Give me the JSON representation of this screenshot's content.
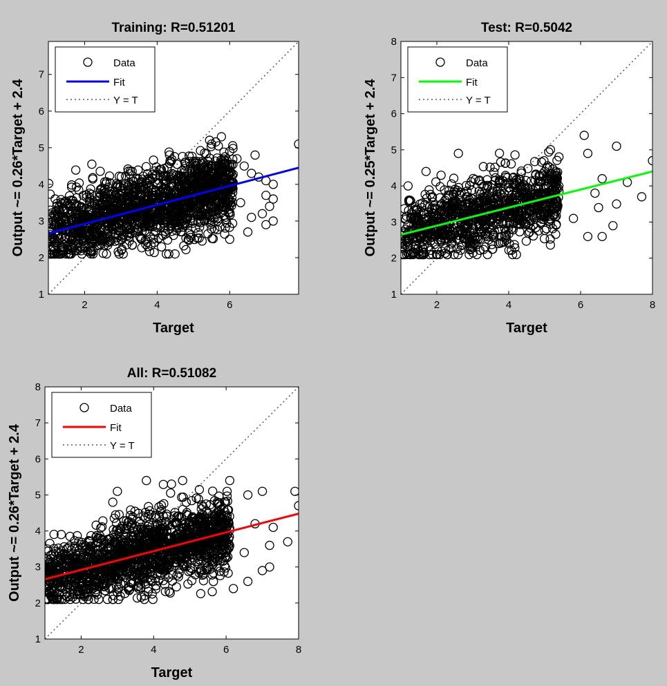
{
  "figure": {
    "background": "#c8c8c8",
    "plot_background": "#ffffff"
  },
  "chart_data": [
    {
      "id": "training",
      "type": "scatter",
      "title": "Training: R=0.51201",
      "xlabel": "Target",
      "ylabel": "Output ~= 0.26*Target + 2.4",
      "xlim": [
        1,
        7.9
      ],
      "ylim": [
        1,
        7.9
      ],
      "xticks": [
        "2",
        "4",
        "6"
      ],
      "yticks": [
        "1",
        "2",
        "3",
        "4",
        "5",
        "6",
        "7"
      ],
      "legend": {
        "position": "top-left",
        "entries": [
          "Data",
          "Fit",
          "Y = T"
        ]
      },
      "fit": {
        "slope": 0.26,
        "intercept": 2.4,
        "color": "#0000ff"
      },
      "identity_line": true,
      "grid": false,
      "data": {
        "distribution": "dense cluster, x 1–6, y 2–5.3",
        "outliers": [
          [
            5.5,
            5.1
          ],
          [
            6.0,
            4.9
          ],
          [
            6.2,
            4.7
          ],
          [
            6.4,
            4.5
          ],
          [
            6.6,
            4.3
          ],
          [
            6.8,
            4.2
          ],
          [
            7.0,
            4.1
          ],
          [
            7.0,
            3.7
          ],
          [
            7.1,
            3.4
          ],
          [
            7.2,
            4.0
          ],
          [
            7.2,
            3.6
          ],
          [
            7.2,
            3.0
          ],
          [
            7.0,
            2.9
          ],
          [
            6.6,
            3.1
          ],
          [
            6.5,
            2.7
          ],
          [
            6.3,
            3.5
          ],
          [
            6.0,
            2.5
          ],
          [
            6.7,
            4.8
          ],
          [
            7.9,
            5.1
          ],
          [
            6.9,
            3.2
          ]
        ]
      }
    },
    {
      "id": "test",
      "type": "scatter",
      "title": "Test: R=0.5042",
      "xlabel": "Target",
      "ylabel": "Output ~= 0.25*Target + 2.4",
      "xlim": [
        1,
        8
      ],
      "ylim": [
        1,
        8
      ],
      "xticks": [
        "2",
        "4",
        "6",
        "8"
      ],
      "yticks": [
        "1",
        "2",
        "3",
        "4",
        "5",
        "6",
        "7",
        "8"
      ],
      "legend": {
        "position": "top-left",
        "entries": [
          "Data",
          "Fit",
          "Y = T"
        ]
      },
      "fit": {
        "slope": 0.25,
        "intercept": 2.4,
        "color": "#00ff00"
      },
      "identity_line": true,
      "grid": false,
      "data": {
        "distribution": "dense cluster, x 1–5.5, y 2.2–5",
        "outliers": [
          [
            6.1,
            5.4
          ],
          [
            7.0,
            5.1
          ],
          [
            6.2,
            4.9
          ],
          [
            6.6,
            4.2
          ],
          [
            6.4,
            3.8
          ],
          [
            7.3,
            4.1
          ],
          [
            7.7,
            3.7
          ],
          [
            8.0,
            4.7
          ],
          [
            7.0,
            3.5
          ],
          [
            6.9,
            2.9
          ],
          [
            6.6,
            2.6
          ],
          [
            6.2,
            2.6
          ],
          [
            5.8,
            3.1
          ],
          [
            6.5,
            3.4
          ],
          [
            1.2,
            4.0
          ],
          [
            1.7,
            4.4
          ],
          [
            1.5,
            2.1
          ],
          [
            2.6,
            4.9
          ]
        ]
      }
    },
    {
      "id": "all",
      "type": "scatter",
      "title": "All: R=0.51082",
      "xlabel": "Target",
      "ylabel": "Output ~= 0.26*Target + 2.4",
      "xlim": [
        1,
        8
      ],
      "ylim": [
        1,
        8
      ],
      "xticks": [
        "2",
        "4",
        "6",
        "8"
      ],
      "yticks": [
        "1",
        "2",
        "3",
        "4",
        "5",
        "6",
        "7",
        "8"
      ],
      "legend": {
        "position": "top-left",
        "entries": [
          "Data",
          "Fit",
          "Y = T"
        ]
      },
      "fit": {
        "slope": 0.26,
        "intercept": 2.4,
        "color": "#ff0000"
      },
      "identity_line": true,
      "grid": false,
      "data": {
        "distribution": "dense cluster, x 1–6.5, y 2.1–5.4",
        "outliers": [
          [
            6.1,
            5.4
          ],
          [
            6.6,
            5.0
          ],
          [
            7.0,
            5.1
          ],
          [
            7.9,
            5.1
          ],
          [
            8.0,
            4.7
          ],
          [
            7.3,
            4.1
          ],
          [
            7.7,
            3.7
          ],
          [
            7.2,
            3.6
          ],
          [
            7.0,
            2.9
          ],
          [
            7.2,
            3.0
          ],
          [
            6.8,
            4.2
          ],
          [
            6.6,
            2.6
          ],
          [
            6.5,
            3.4
          ],
          [
            6.2,
            2.4
          ],
          [
            4.8,
            5.4
          ],
          [
            3.8,
            5.4
          ],
          [
            3.0,
            5.1
          ]
        ]
      }
    }
  ]
}
